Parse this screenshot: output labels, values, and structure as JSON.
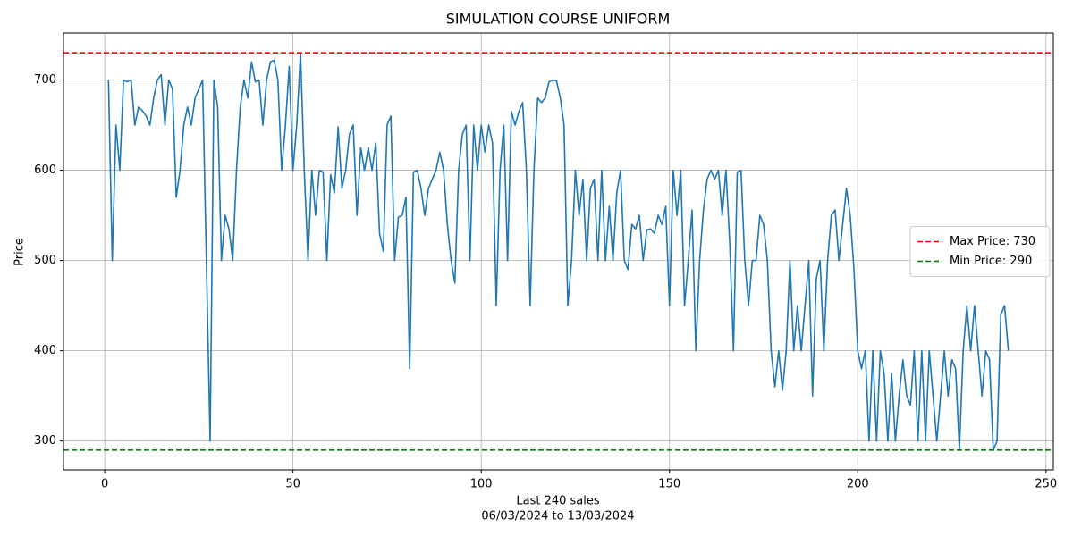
{
  "chart_data": {
    "type": "line",
    "title": "SIMULATION COURSE UNIFORM",
    "xlabel": [
      "Last 240 sales",
      "06/03/2024 to 13/03/2024"
    ],
    "ylabel": "Price",
    "x": [
      1,
      2,
      3,
      4,
      5,
      6,
      7,
      8,
      9,
      10,
      11,
      12,
      13,
      14,
      15,
      16,
      17,
      18,
      19,
      20,
      21,
      22,
      23,
      24,
      25,
      26,
      27,
      28,
      29,
      30,
      31,
      32,
      33,
      34,
      35,
      36,
      37,
      38,
      39,
      40,
      41,
      42,
      43,
      44,
      45,
      46,
      47,
      48,
      49,
      50,
      51,
      52,
      53,
      54,
      55,
      56,
      57,
      58,
      59,
      60,
      61,
      62,
      63,
      64,
      65,
      66,
      67,
      68,
      69,
      70,
      71,
      72,
      73,
      74,
      75,
      76,
      77,
      78,
      79,
      80,
      81,
      82,
      83,
      84,
      85,
      86,
      87,
      88,
      89,
      90,
      91,
      92,
      93,
      94,
      95,
      96,
      97,
      98,
      99,
      100,
      101,
      102,
      103,
      104,
      105,
      106,
      107,
      108,
      109,
      110,
      111,
      112,
      113,
      114,
      115,
      116,
      117,
      118,
      119,
      120,
      121,
      122,
      123,
      124,
      125,
      126,
      127,
      128,
      129,
      130,
      131,
      132,
      133,
      134,
      135,
      136,
      137,
      138,
      139,
      140,
      141,
      142,
      143,
      144,
      145,
      146,
      147,
      148,
      149,
      150,
      151,
      152,
      153,
      154,
      155,
      156,
      157,
      158,
      159,
      160,
      161,
      162,
      163,
      164,
      165,
      166,
      167,
      168,
      169,
      170,
      171,
      172,
      173,
      174,
      175,
      176,
      177,
      178,
      179,
      180,
      181,
      182,
      183,
      184,
      185,
      186,
      187,
      188,
      189,
      190,
      191,
      192,
      193,
      194,
      195,
      196,
      197,
      198,
      199,
      200,
      201,
      202,
      203,
      204,
      205,
      206,
      207,
      208,
      209,
      210,
      211,
      212,
      213,
      214,
      215,
      216,
      217,
      218,
      219,
      220,
      221,
      222,
      223,
      224,
      225,
      226,
      227,
      228,
      229,
      230,
      231,
      232,
      233,
      234,
      235,
      236,
      237,
      238,
      239,
      240
    ],
    "series": [
      {
        "color": "#1f77b4",
        "values": [
          700,
          500,
          650,
          600,
          700,
          698,
          700,
          650,
          670,
          666,
          660,
          650,
          680,
          700,
          706,
          650,
          700,
          690,
          570,
          600,
          650,
          670,
          650,
          680,
          690,
          700,
          500,
          300,
          700,
          670,
          500,
          550,
          535,
          500,
          600,
          670,
          700,
          680,
          720,
          698,
          700,
          650,
          700,
          720,
          722,
          700,
          600,
          650,
          715,
          600,
          650,
          730,
          600,
          500,
          600,
          550,
          600,
          598,
          500,
          595,
          575,
          648,
          580,
          600,
          640,
          650,
          550,
          625,
          600,
          625,
          600,
          630,
          530,
          510,
          650,
          660,
          500,
          548,
          550,
          570,
          380,
          598,
          600,
          580,
          550,
          580,
          590,
          600,
          620,
          600,
          540,
          500,
          475,
          600,
          640,
          650,
          500,
          650,
          600,
          650,
          620,
          650,
          630,
          450,
          600,
          650,
          500,
          665,
          650,
          665,
          675,
          600,
          450,
          600,
          680,
          675,
          680,
          698,
          700,
          699,
          680,
          650,
          450,
          500,
          600,
          550,
          590,
          500,
          580,
          590,
          500,
          600,
          500,
          560,
          500,
          575,
          600,
          500,
          490,
          540,
          535,
          550,
          500,
          534,
          535,
          530,
          550,
          540,
          560,
          450,
          600,
          550,
          600,
          450,
          500,
          556,
          400,
          500,
          555,
          590,
          600,
          590,
          600,
          550,
          600,
          520,
          400,
          598,
          600,
          500,
          450,
          500,
          500,
          550,
          540,
          500,
          400,
          360,
          400,
          356,
          400,
          500,
          400,
          450,
          400,
          450,
          500,
          350,
          480,
          500,
          400,
          500,
          550,
          556,
          500,
          540,
          580,
          550,
          490,
          400,
          380,
          400,
          300,
          400,
          300,
          400,
          375,
          300,
          375,
          300,
          350,
          390,
          350,
          340,
          400,
          300,
          400,
          300,
          400,
          350,
          300,
          350,
          400,
          350,
          390,
          380,
          290,
          400,
          450,
          400,
          450,
          400,
          350,
          400,
          390,
          290,
          300,
          440,
          450,
          400
        ]
      }
    ],
    "hlines": [
      {
        "value": 730,
        "label": "Max Price: 730",
        "color": "red"
      },
      {
        "value": 290,
        "label": "Min Price: 290",
        "color": "green"
      }
    ],
    "xlim": [
      -10.95,
      251.95
    ],
    "ylim": [
      268,
      752
    ],
    "xticks": [
      0,
      50,
      100,
      150,
      200,
      250
    ],
    "yticks": [
      300,
      400,
      500,
      600,
      700
    ],
    "grid": true,
    "legend": "center right"
  }
}
